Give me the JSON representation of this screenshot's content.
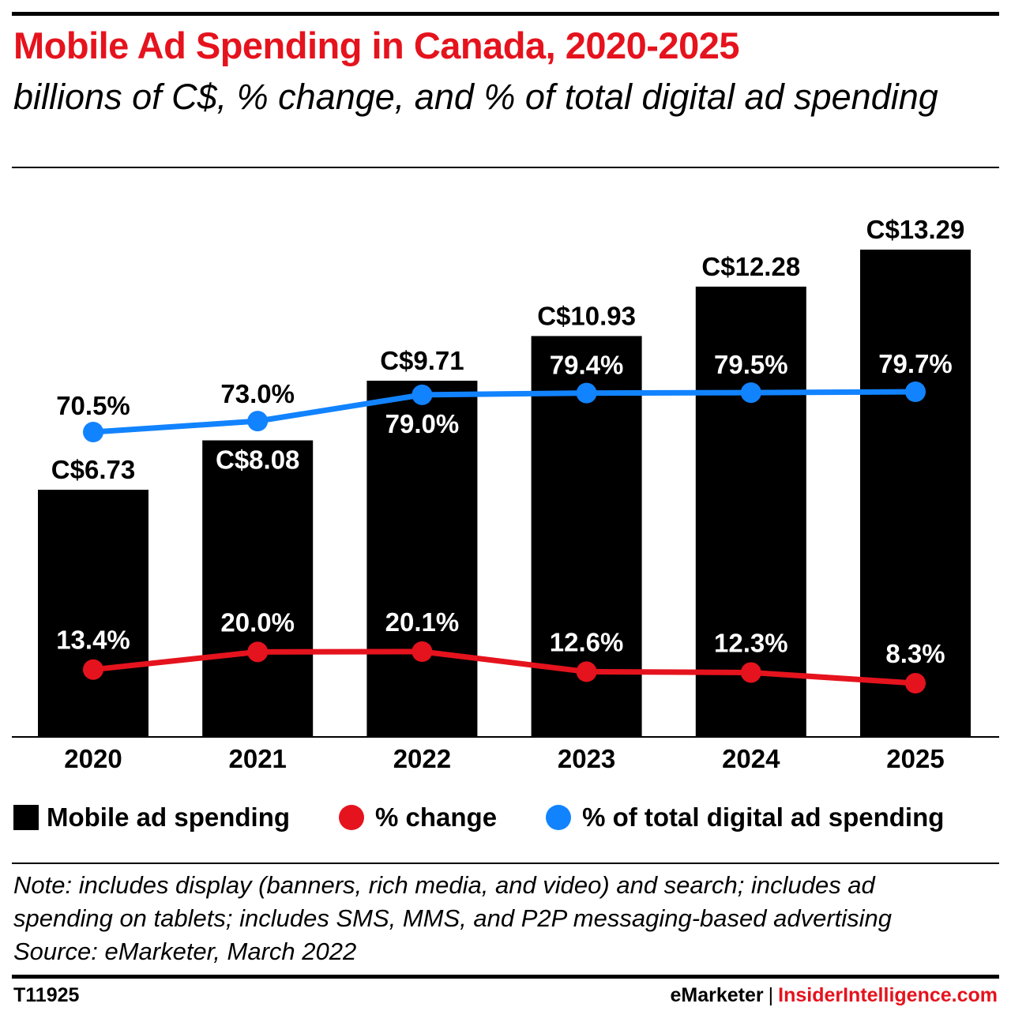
{
  "header": {
    "title": "Mobile Ad Spending in Canada, 2020-2025",
    "subtitle": "billions of C$, % change, and % of total digital ad spending"
  },
  "colors": {
    "title": "#e5131d",
    "bars": "#000000",
    "pct_change": "#e5131d",
    "pct_total": "#1283ff",
    "text_on_bar": "#ffffff"
  },
  "chart_data": {
    "type": "bar",
    "categories": [
      "2020",
      "2021",
      "2022",
      "2023",
      "2024",
      "2025"
    ],
    "series": [
      {
        "name": "Mobile ad spending",
        "kind": "bar",
        "values": [
          6.73,
          8.08,
          9.71,
          10.93,
          12.28,
          13.29
        ],
        "labels": [
          "C$6.73",
          "C$8.08",
          "C$9.71",
          "C$10.93",
          "C$12.28",
          "C$13.29"
        ]
      },
      {
        "name": "% change",
        "kind": "line",
        "values": [
          13.4,
          20.0,
          20.1,
          12.6,
          12.3,
          8.3
        ],
        "labels": [
          "13.4%",
          "20.0%",
          "20.1%",
          "12.6%",
          "12.3%",
          "8.3%"
        ]
      },
      {
        "name": "% of total digital ad spending",
        "kind": "line",
        "values": [
          70.5,
          73.0,
          79.0,
          79.4,
          79.5,
          79.7
        ],
        "labels": [
          "70.5%",
          "73.0%",
          "79.0%",
          "79.4%",
          "79.5%",
          "79.7%"
        ]
      }
    ],
    "title": "Mobile Ad Spending in Canada, 2020-2025",
    "xlabel": "",
    "ylabel": "",
    "ylim": [
      0,
      14.5
    ],
    "grid": false,
    "legend_position": "bottom"
  },
  "legend": {
    "items": [
      "Mobile ad spending",
      "% change",
      "% of total digital ad spending"
    ]
  },
  "note": {
    "lines": [
      "Note: includes display (banners, rich media, and video) and search; includes ad",
      "spending on tablets; includes SMS, MMS, and P2P messaging-based advertising",
      "Source: eMarketer, March 2022"
    ]
  },
  "footer": {
    "id": "T11925",
    "brand": "eMarketer",
    "separator": "|",
    "brand2": "InsiderIntelligence.com"
  }
}
